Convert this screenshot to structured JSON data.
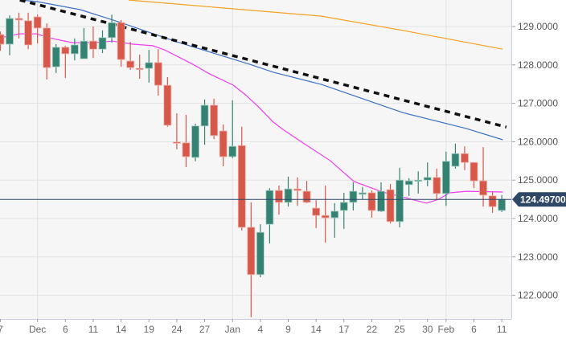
{
  "chart_data": {
    "type": "candlestick",
    "title": "",
    "xlabel": "",
    "ylabel": "",
    "ylim": [
      121.35,
      129.69
    ],
    "grid": true,
    "colors": {
      "up": "#358272",
      "down": "#d6584a",
      "bg": "#f6f6f6",
      "grid": "#e2e2e2",
      "ma_slow": "#f5a020",
      "ma_mid": "#3b6fc6",
      "ma_fast": "#f03cf0",
      "trendline": "#111111",
      "price_tag": "#2f4868"
    },
    "y_ticks": [
      "129.0000",
      "128.0000",
      "127.0000",
      "126.0000",
      "125.0000",
      "124.0000",
      "123.0000",
      "122.0000"
    ],
    "y_tick_values": [
      129,
      128,
      127,
      126,
      125,
      124,
      123,
      122
    ],
    "x_ticks": [
      {
        "label": "7",
        "index": 0
      },
      {
        "label": "Dec",
        "index": 4
      },
      {
        "label": "6",
        "index": 7
      },
      {
        "label": "11",
        "index": 10
      },
      {
        "label": "14",
        "index": 13
      },
      {
        "label": "19",
        "index": 16
      },
      {
        "label": "24",
        "index": 19
      },
      {
        "label": "27",
        "index": 22
      },
      {
        "label": "Jan",
        "index": 25
      },
      {
        "label": "4",
        "index": 28
      },
      {
        "label": "9",
        "index": 31
      },
      {
        "label": "14",
        "index": 34
      },
      {
        "label": "17",
        "index": 37
      },
      {
        "label": "22",
        "index": 40
      },
      {
        "label": "25",
        "index": 43
      },
      {
        "label": "30",
        "index": 46
      },
      {
        "label": "Feb",
        "index": 48
      },
      {
        "label": "6",
        "index": 51
      },
      {
        "label": "11",
        "index": 54
      }
    ],
    "month_gridlines": [
      4,
      25,
      48
    ],
    "last_price": "124.49700",
    "last_price_value": 124.497,
    "candles": [
      [
        128.79,
        128.87,
        128.37,
        128.54
      ],
      [
        128.54,
        129.29,
        128.25,
        129.21
      ],
      [
        129.21,
        129.36,
        128.69,
        129.17
      ],
      [
        129.15,
        129.36,
        128.41,
        128.52
      ],
      [
        129.25,
        129.31,
        128.56,
        128.96
      ],
      [
        128.96,
        129.08,
        127.62,
        127.93
      ],
      [
        127.95,
        128.54,
        127.79,
        128.46
      ],
      [
        128.46,
        128.5,
        127.66,
        128.29
      ],
      [
        128.29,
        128.69,
        128.12,
        128.52
      ],
      [
        128.16,
        128.96,
        128.16,
        128.62
      ],
      [
        128.62,
        129.0,
        128.18,
        128.41
      ],
      [
        128.41,
        128.9,
        128.31,
        128.71
      ],
      [
        128.71,
        129.31,
        128.58,
        129.1
      ],
      [
        129.1,
        129.17,
        127.95,
        128.14
      ],
      [
        128.1,
        128.6,
        127.87,
        127.93
      ],
      [
        127.91,
        128.27,
        127.64,
        127.9
      ],
      [
        127.91,
        128.39,
        127.54,
        128.06
      ],
      [
        128.06,
        128.41,
        127.2,
        127.47
      ],
      [
        127.47,
        127.68,
        126.39,
        126.43
      ],
      [
        125.99,
        126.74,
        125.8,
        125.98
      ],
      [
        125.97,
        126.7,
        125.34,
        125.61
      ],
      [
        125.59,
        126.47,
        125.49,
        126.41
      ],
      [
        126.41,
        127.1,
        125.92,
        126.95
      ],
      [
        126.95,
        127.12,
        126.07,
        126.16
      ],
      [
        126.28,
        126.45,
        125.36,
        125.61
      ],
      [
        125.61,
        127.08,
        125.57,
        125.88
      ],
      [
        125.9,
        126.39,
        123.69,
        123.77
      ],
      [
        123.77,
        124.42,
        121.43,
        122.54
      ],
      [
        122.54,
        123.85,
        122.47,
        123.64
      ],
      [
        123.85,
        124.79,
        123.35,
        124.73
      ],
      [
        124.73,
        124.86,
        124.1,
        124.42
      ],
      [
        124.42,
        125.09,
        124.31,
        124.77
      ],
      [
        124.77,
        125.07,
        124.33,
        124.73
      ],
      [
        124.71,
        124.98,
        124.4,
        124.42
      ],
      [
        124.27,
        124.48,
        123.75,
        124.08
      ],
      [
        124.08,
        124.86,
        123.37,
        124.02
      ],
      [
        124.02,
        124.4,
        123.5,
        124.19
      ],
      [
        124.21,
        124.67,
        123.73,
        124.42
      ],
      [
        124.42,
        124.94,
        124.21,
        124.71
      ],
      [
        124.63,
        124.82,
        124.5,
        124.67
      ],
      [
        124.67,
        124.73,
        124.02,
        124.21
      ],
      [
        124.19,
        124.94,
        124.17,
        124.71
      ],
      [
        124.75,
        124.9,
        123.87,
        123.92
      ],
      [
        123.92,
        125.32,
        123.77,
        125.0
      ],
      [
        124.88,
        125.05,
        124.59,
        124.98
      ],
      [
        124.98,
        125.23,
        124.65,
        125.0
      ],
      [
        125.0,
        125.46,
        124.84,
        125.07
      ],
      [
        125.07,
        125.3,
        124.48,
        124.65
      ],
      [
        124.65,
        125.74,
        124.33,
        125.49
      ],
      [
        125.36,
        125.95,
        125.3,
        125.69
      ],
      [
        125.69,
        125.88,
        125.26,
        125.46
      ],
      [
        125.46,
        125.46,
        124.79,
        124.98
      ],
      [
        124.98,
        125.86,
        124.31,
        124.61
      ],
      [
        124.59,
        124.69,
        124.15,
        124.31
      ],
      [
        124.21,
        124.61,
        124.17,
        124.5
      ]
    ],
    "candle_format": [
      "open",
      "high",
      "low",
      "close"
    ],
    "series": [
      {
        "name": "slow-ma",
        "color_key": "ma_slow",
        "points": [
          [
            13.8,
            129.69
          ],
          [
            25.1,
            129.46
          ],
          [
            34.6,
            129.27
          ],
          [
            43.3,
            128.9
          ],
          [
            54.1,
            128.41
          ]
        ]
      },
      {
        "name": "mid-ma",
        "color_key": "ma_mid",
        "points": [
          [
            2.1,
            129.69
          ],
          [
            3.9,
            129.65
          ],
          [
            8.6,
            129.44
          ],
          [
            13,
            129.1
          ],
          [
            19,
            128.6
          ],
          [
            26.8,
            128.02
          ],
          [
            29.4,
            127.81
          ],
          [
            34.6,
            127.49
          ],
          [
            43.3,
            126.76
          ],
          [
            50.2,
            126.34
          ],
          [
            54.1,
            126.05
          ]
        ]
      },
      {
        "name": "fast-ma",
        "color_key": "ma_fast",
        "points": [
          [
            0,
            128.71
          ],
          [
            2.1,
            128.81
          ],
          [
            3.9,
            128.81
          ],
          [
            5.2,
            128.71
          ],
          [
            7.75,
            128.58
          ],
          [
            9.9,
            128.58
          ],
          [
            12.1,
            128.62
          ],
          [
            14.3,
            128.54
          ],
          [
            16.4,
            128.5
          ],
          [
            17.7,
            128.39
          ],
          [
            19,
            128.23
          ],
          [
            20.7,
            128.02
          ],
          [
            22.5,
            127.77
          ],
          [
            25.1,
            127.47
          ],
          [
            26.4,
            127.22
          ],
          [
            27.7,
            126.93
          ],
          [
            29.4,
            126.51
          ],
          [
            30.3,
            126.34
          ],
          [
            32.9,
            125.92
          ],
          [
            35.5,
            125.51
          ],
          [
            38.1,
            124.96
          ],
          [
            40.7,
            124.73
          ],
          [
            41.5,
            124.67
          ],
          [
            43.3,
            124.56
          ],
          [
            45.9,
            124.4
          ],
          [
            47.2,
            124.5
          ],
          [
            48.4,
            124.67
          ],
          [
            50.2,
            124.71
          ],
          [
            54.1,
            124.69
          ]
        ]
      },
      {
        "name": "downtrend-line",
        "color_key": "trendline",
        "dashed": true,
        "points": [
          [
            2.1,
            129.69
          ],
          [
            54.5,
            126.38
          ]
        ]
      }
    ]
  }
}
